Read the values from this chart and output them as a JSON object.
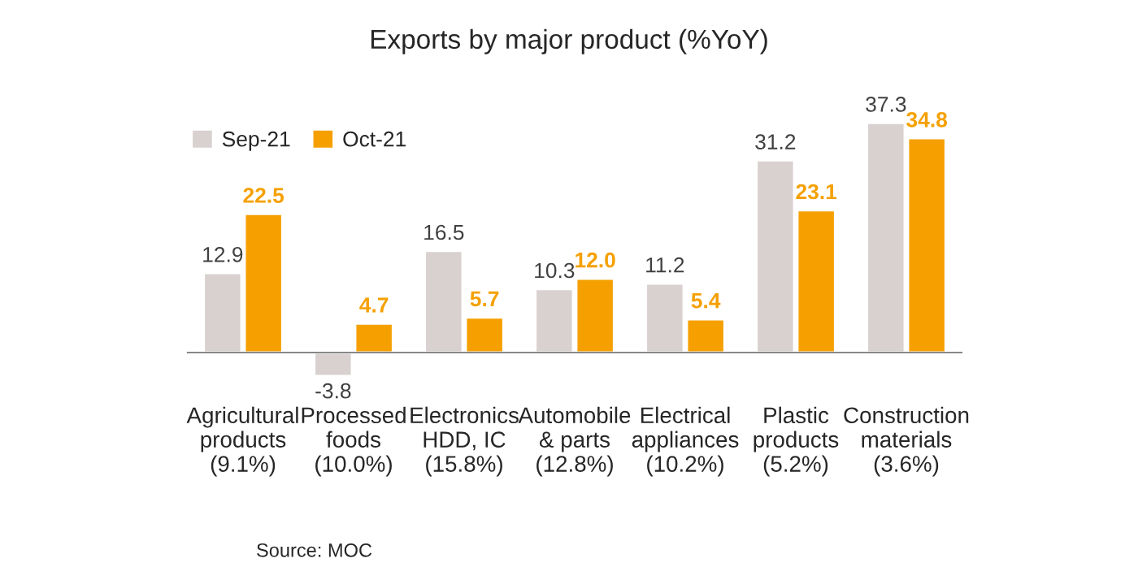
{
  "chart_data": {
    "type": "bar",
    "title": "Exports by major product (%YoY)",
    "categories": [
      "Agricultural\nproducts\n(9.1%)",
      "Processed\nfoods\n(10.0%)",
      "Electronics\nHDD, IC\n(15.8%)",
      "Automobile\n& parts\n(12.8%)",
      "Electrical\nappliances\n(10.2%)",
      "Plastic\nproducts\n(5.2%)",
      "Construction\nmaterials\n(3.6%)"
    ],
    "series": [
      {
        "name": "Sep-21",
        "color": "#d9d0d0",
        "values": [
          12.9,
          -3.8,
          16.5,
          10.3,
          11.2,
          31.2,
          37.3
        ],
        "value_labels": [
          "12.9",
          "-3.8",
          "16.5",
          "10.3",
          "11.2",
          "31.2",
          "37.3"
        ]
      },
      {
        "name": "Oct-21",
        "color": "#f5a000",
        "values": [
          22.5,
          4.7,
          5.7,
          12.0,
          5.4,
          23.1,
          34.8
        ],
        "value_labels": [
          "22.5",
          "4.7",
          "5.7",
          "12.0",
          "5.4",
          "23.1",
          "34.8"
        ]
      }
    ],
    "legend": "top left",
    "grid": false,
    "annotations": [
      "Source: MOC"
    ]
  }
}
